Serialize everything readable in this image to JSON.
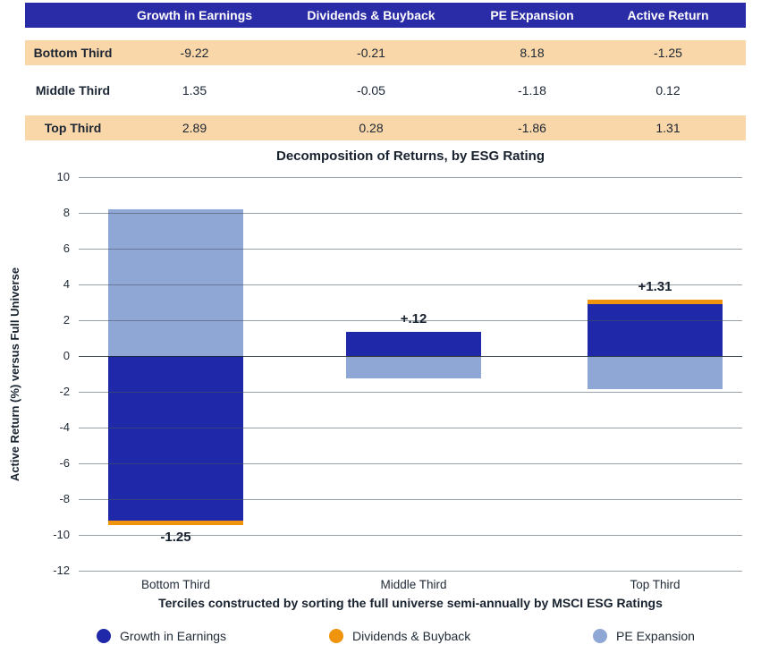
{
  "table": {
    "columns": [
      "",
      "Growth in Earnings",
      "Dividends & Buyback",
      "PE Expansion",
      "Active Return"
    ],
    "rows": [
      {
        "label": "Bottom Third",
        "values": [
          "-9.22",
          "-0.21",
          "8.18",
          "-1.25"
        ],
        "highlight": true
      },
      {
        "label": "Middle Third",
        "values": [
          "1.35",
          "-0.05",
          "-1.18",
          "0.12"
        ],
        "highlight": false
      },
      {
        "label": "Top Third",
        "values": [
          "2.89",
          "0.28",
          "-1.86",
          "1.31"
        ],
        "highlight": true
      }
    ]
  },
  "chart_data": {
    "type": "bar",
    "stacked": true,
    "title": "Decomposition of Returns, by ESG Rating",
    "ylabel": "Active Return (%) versus Full Universe",
    "xlabel": "Terciles constructed by sorting the full universe semi-annually by MSCI ESG Ratings",
    "categories": [
      "Bottom Third",
      "Middle Third",
      "Top Third"
    ],
    "series": [
      {
        "name": "Growth in Earnings",
        "color": "#1f28a9",
        "values": [
          -9.22,
          1.35,
          2.89
        ]
      },
      {
        "name": "Dividends & Buyback",
        "color": "#f0930d",
        "values": [
          -0.21,
          -0.05,
          0.28
        ]
      },
      {
        "name": "PE Expansion",
        "color": "#8fa7d5",
        "values": [
          8.18,
          -1.18,
          -1.86
        ]
      }
    ],
    "totals": [
      -1.25,
      0.12,
      1.31
    ],
    "total_labels": [
      "-1.25",
      "+.12",
      "+1.31"
    ],
    "ylim": [
      -12,
      10
    ],
    "ytick_step": 2,
    "grid": true,
    "legend_position": "bottom"
  },
  "colors": {
    "header_blue": "#2a2ba6",
    "row_peach": "#fad7a9",
    "bar_dark_blue": "#1f28a9",
    "bar_orange": "#f0930d",
    "bar_light_blue": "#8fa7d5",
    "text_navy": "#1b2533",
    "gridline_gray": "#99a2a8"
  }
}
